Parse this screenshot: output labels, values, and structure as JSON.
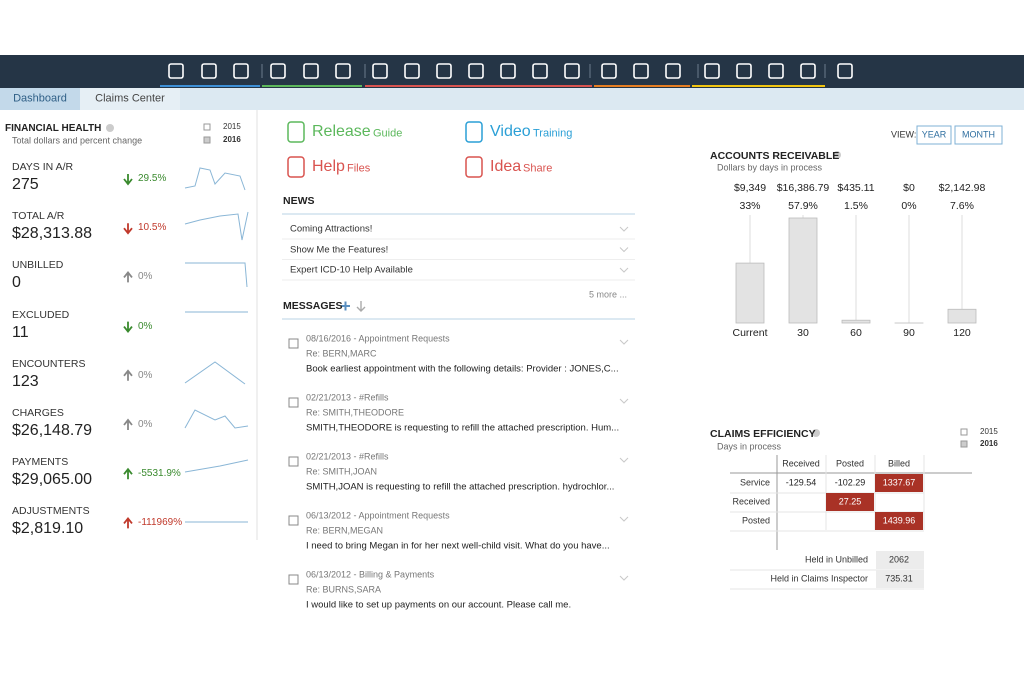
{
  "tabs": [
    "Dashboard",
    "Claims Center"
  ],
  "financial_health": {
    "title": "FINANCIAL HEALTH",
    "subtitle": "Total dollars and percent change",
    "legend": [
      "2015",
      "2016"
    ],
    "metrics": [
      {
        "label": "DAYS IN A/R",
        "value": "275",
        "change": "29.5%",
        "arrow": "down",
        "color": "#3a8a2e"
      },
      {
        "label": "TOTAL A/R",
        "value": "$28,313.88",
        "change": "10.5%",
        "arrow": "down",
        "color": "#c0392b"
      },
      {
        "label": "UNBILLED",
        "value": "0",
        "change": "0%",
        "arrow": "up",
        "color": "#888888"
      },
      {
        "label": "EXCLUDED",
        "value": "11",
        "change": "0%",
        "arrow": "down",
        "color": "#3a8a2e"
      },
      {
        "label": "ENCOUNTERS",
        "value": "123",
        "change": "0%",
        "arrow": "up",
        "color": "#888888"
      },
      {
        "label": "CHARGES",
        "value": "$26,148.79",
        "change": "0%",
        "arrow": "up",
        "color": "#888888"
      },
      {
        "label": "PAYMENTS",
        "value": "$29,065.00",
        "change": "-5531.9%",
        "arrow": "up",
        "color": "#3a8a2e"
      },
      {
        "label": "ADJUSTMENTS",
        "value": "$2,819.10",
        "change": "-111969%",
        "arrow": "up",
        "color": "#c0392b"
      }
    ]
  },
  "links": [
    {
      "title": "Release",
      "suffix": "Guide",
      "color": "#5cb85c"
    },
    {
      "title": "Video",
      "suffix": "Training",
      "color": "#2a9fd6"
    },
    {
      "title": "Help",
      "suffix": "Files",
      "color": "#d9534f"
    },
    {
      "title": "Idea",
      "suffix": "Share",
      "color": "#d9534f"
    }
  ],
  "news": {
    "title": "NEWS",
    "items": [
      "Coming Attractions!",
      "Show Me the Features!",
      "Expert ICD-10 Help Available"
    ],
    "more": "5 more ..."
  },
  "messages": {
    "title": "MESSAGES",
    "items": [
      {
        "header": "08/16/2016 - Appointment Requests",
        "re": "Re: BERN,MARC",
        "body": "Book earliest appointment with the following details: Provider : JONES,C..."
      },
      {
        "header": "02/21/2013 - #Refills",
        "re": "Re: SMITH,THEODORE",
        "body": "SMITH,THEODORE is requesting to refill the attached prescription. Hum..."
      },
      {
        "header": "02/21/2013 - #Refills",
        "re": "Re: SMITH,JOAN",
        "body": "SMITH,JOAN is requesting to refill the attached prescription. hydrochlor..."
      },
      {
        "header": "06/13/2012 - Appointment Requests",
        "re": "Re: BERN,MEGAN",
        "body": "I need to bring Megan in for her next well-child visit. What do you have..."
      },
      {
        "header": "06/13/2012 - Billing & Payments",
        "re": "Re: BURNS,SARA",
        "body": "I would like to set up payments on our account. Please call me."
      }
    ]
  },
  "view": {
    "label": "VIEW:",
    "options": [
      "YEAR",
      "MONTH"
    ]
  },
  "chart_data": {
    "type": "bar",
    "title": "ACCOUNTS RECEIVABLE",
    "subtitle": "Dollars by days in process",
    "categories": [
      "Current",
      "30",
      "60",
      "90",
      "120"
    ],
    "values": [
      9349,
      16386.79,
      435.11,
      0,
      2142.98
    ],
    "value_labels": [
      "$9,349",
      "$16,386.79",
      "$435.11",
      "$0",
      "$2,142.98"
    ],
    "percent_labels": [
      "33%",
      "57.9%",
      "1.5%",
      "0%",
      "7.6%"
    ],
    "color": "#e3e3e3"
  },
  "claims_efficiency": {
    "title": "CLAIMS EFFICIENCY",
    "subtitle": "Days in process",
    "legend": [
      "2015",
      "2016"
    ],
    "columns": [
      "Received",
      "Posted",
      "Billed"
    ],
    "rows": [
      "Service",
      "Received",
      "Posted"
    ],
    "cells": [
      [
        -129.54,
        -102.29,
        1337.67
      ],
      [
        null,
        27.25,
        null
      ],
      [
        null,
        null,
        1439.96
      ]
    ],
    "highlighted": [
      [
        false,
        false,
        true
      ],
      [
        false,
        true,
        false
      ],
      [
        false,
        false,
        true
      ]
    ],
    "highlight_color": "#a93226",
    "summary": [
      {
        "label": "Held in Unbilled",
        "value": 2062
      },
      {
        "label": "Held in Claims Inspector",
        "value": 735.31
      }
    ]
  }
}
